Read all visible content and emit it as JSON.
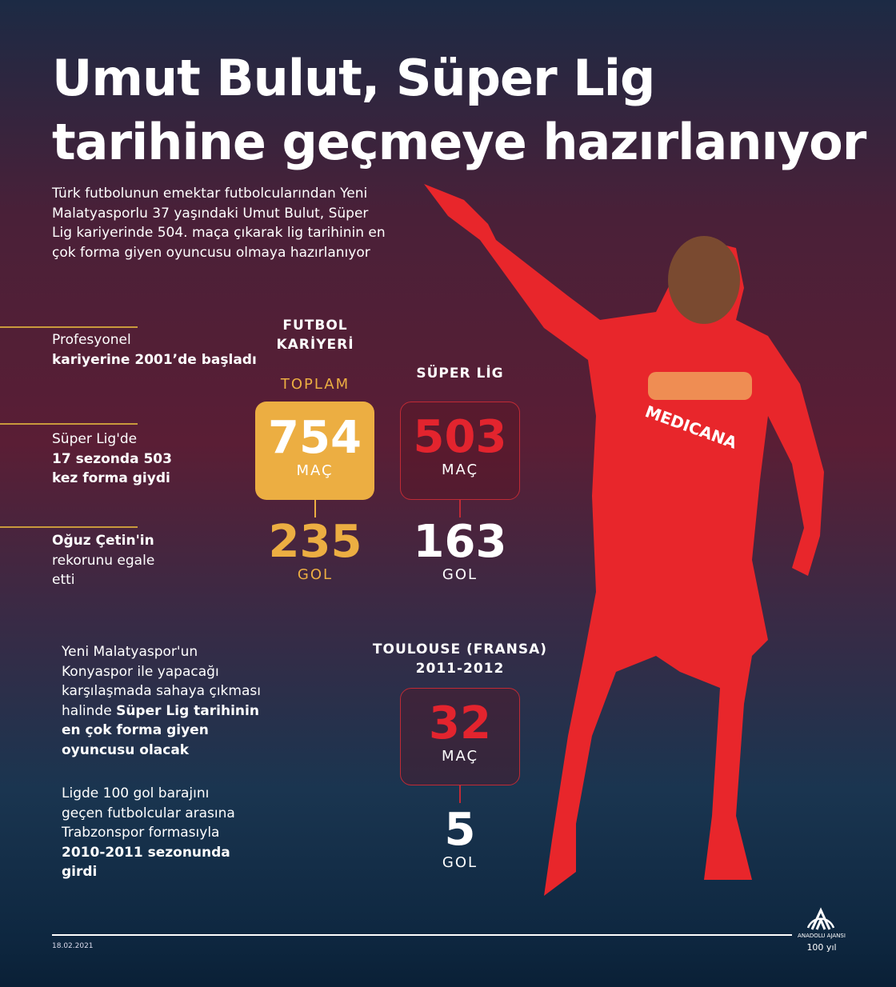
{
  "title": {
    "line1": "Umut Bulut, Süper Lig",
    "line2": "tarihine geçmeye hazırlanıyor"
  },
  "intro": "Türk futbolunun emektar futbolcularından Yeni Malatyasporlu 37 yaşındaki Umut Bulut, Süper Lig kariyerinde 504. maça çıkarak lig tarihinin en çok forma giyen oyuncusu olmaya hazırlanıyor",
  "facts": [
    {
      "normal": "Profesyonel",
      "bold": "kariyerine 2001’de başladı"
    },
    {
      "normal": "Süper Lig'de",
      "bold": "17 sezonda 503 kez forma giydi"
    },
    {
      "bold": "Oğuz Çetin'in",
      "normal": "rekorunu egale etti"
    }
  ],
  "notes": [
    {
      "normal": "Yeni Malatyaspor'un Konyaspor ile yapacağı karşılaşmada sahaya çıkması halinde",
      "bold": "Süper Lig tarihinin en çok forma giyen oyuncusu olacak"
    },
    {
      "normal": "Ligde 100 gol barajını geçen futbolcular arasına Trabzonspor formasıyla",
      "bold": "2010-2011 sezonunda girdi"
    }
  ],
  "career": {
    "heading_1": "FUTBOL",
    "heading_2": "KARİYERİ",
    "sub": "TOPLAM",
    "matches": "754",
    "matches_label": "MAÇ",
    "goals": "235",
    "goals_label": "GOL"
  },
  "superlig": {
    "heading": "SÜPER LİG",
    "matches": "503",
    "matches_label": "MAÇ",
    "goals": "163",
    "goals_label": "GOL"
  },
  "toulouse": {
    "heading_1": "TOULOUSE (FRANSA)",
    "heading_2": "2011-2012",
    "matches": "32",
    "matches_label": "MAÇ",
    "goals": "5",
    "goals_label": "GOL"
  },
  "footer": {
    "date": "18.02.2021",
    "logo": "AA ANADOLU AJANSI 100 yıl 1920-2020"
  },
  "colors": {
    "gold": "#ecae42",
    "red": "#e3242e",
    "jersey": "#e8262b"
  }
}
